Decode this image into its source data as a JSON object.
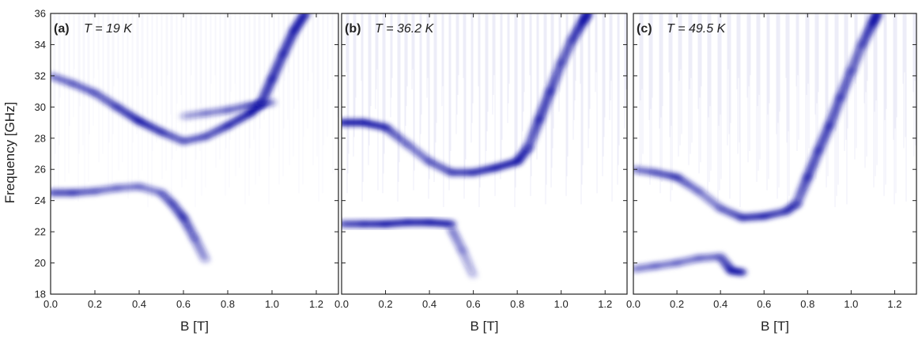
{
  "figure": {
    "ylabel": "Frequency [GHz]",
    "xlabel": "B [T]",
    "accent_color": "#1a1aa8"
  },
  "chart_data": [
    {
      "type": "heatmap",
      "panel_label": "(a)",
      "title": "T = 19 K",
      "xlabel": "B [T]",
      "ylabel": "Frequency [GHz]",
      "xlim": [
        0,
        1.3
      ],
      "ylim": [
        18,
        36
      ],
      "xticks": [
        0.0,
        0.2,
        0.4,
        0.6,
        0.8,
        1.0,
        1.2
      ],
      "xtick_labels": [
        "0.0",
        "0.2",
        "0.4",
        "0.6",
        "0.8",
        "1.0",
        "1.2"
      ],
      "yticks": [
        18,
        20,
        22,
        24,
        26,
        28,
        30,
        32,
        34,
        36
      ],
      "ytick_labels": [
        "18",
        "20",
        "22",
        "24",
        "26",
        "28",
        "30",
        "32",
        "34",
        "36"
      ],
      "series": [
        {
          "x": [
            0.0,
            0.1,
            0.2,
            0.3,
            0.4,
            0.5,
            0.6,
            0.7,
            0.8,
            0.9,
            0.95
          ],
          "y": [
            32.0,
            31.5,
            30.9,
            30.0,
            29.1,
            28.4,
            27.8,
            28.1,
            28.8,
            29.6,
            30.2
          ],
          "intensity": [
            0.35,
            0.4,
            0.45,
            0.6,
            0.9,
            0.6,
            0.4,
            0.45,
            0.7,
            0.9,
            0.9
          ]
        },
        {
          "x": [
            0.6,
            0.7,
            0.8,
            0.9,
            1.0
          ],
          "y": [
            29.4,
            29.6,
            29.8,
            30.1,
            30.3
          ],
          "intensity": [
            0.2,
            0.25,
            0.3,
            0.4,
            0.4
          ]
        },
        {
          "x": [
            0.95,
            1.0,
            1.05,
            1.1,
            1.15
          ],
          "y": [
            30.2,
            31.8,
            33.4,
            34.9,
            36.0
          ],
          "intensity": [
            0.8,
            0.85,
            0.8,
            0.9,
            1.0
          ]
        },
        {
          "x": [
            0.0,
            0.1,
            0.2,
            0.3,
            0.4,
            0.5,
            0.55,
            0.6,
            0.65,
            0.7
          ],
          "y": [
            24.5,
            24.5,
            24.6,
            24.8,
            24.9,
            24.5,
            23.8,
            22.9,
            21.6,
            20.2
          ],
          "intensity": [
            0.5,
            0.5,
            0.35,
            0.3,
            0.3,
            0.3,
            0.4,
            0.6,
            0.4,
            0.3
          ]
        }
      ]
    },
    {
      "type": "heatmap",
      "panel_label": "(b)",
      "title": "T = 36.2 K",
      "xlabel": "B [T]",
      "ylabel": "",
      "xlim": [
        0,
        1.3
      ],
      "ylim": [
        18,
        36
      ],
      "xticks": [
        0.0,
        0.2,
        0.4,
        0.6,
        0.8,
        1.0,
        1.2
      ],
      "xtick_labels": [
        "0.0",
        "0.2",
        "0.4",
        "0.6",
        "0.8",
        "1.0",
        "1.2"
      ],
      "yticks": [
        18,
        20,
        22,
        24,
        26,
        28,
        30,
        32,
        34,
        36
      ],
      "ytick_labels": [],
      "series": [
        {
          "x": [
            0.0,
            0.1,
            0.2,
            0.3,
            0.4,
            0.5,
            0.6,
            0.7,
            0.8,
            0.85
          ],
          "y": [
            29.0,
            29.0,
            28.7,
            27.6,
            26.5,
            25.8,
            25.8,
            26.1,
            26.5,
            27.4
          ],
          "intensity": [
            0.9,
            0.9,
            0.7,
            0.4,
            0.45,
            0.5,
            0.6,
            0.8,
            0.9,
            0.6
          ]
        },
        {
          "x": [
            0.85,
            0.9,
            0.95,
            1.0,
            1.05,
            1.1,
            1.12
          ],
          "y": [
            27.4,
            29.2,
            31.0,
            32.8,
            34.3,
            35.5,
            36.0
          ],
          "intensity": [
            0.6,
            0.85,
            0.8,
            0.6,
            0.6,
            0.9,
            1.0
          ]
        },
        {
          "x": [
            0.0,
            0.1,
            0.2,
            0.3,
            0.4,
            0.5
          ],
          "y": [
            22.5,
            22.5,
            22.5,
            22.6,
            22.6,
            22.5
          ],
          "intensity": [
            0.5,
            0.6,
            0.8,
            0.7,
            0.8,
            0.8
          ]
        },
        {
          "x": [
            0.5,
            0.55,
            0.6
          ],
          "y": [
            22.2,
            20.8,
            19.2
          ],
          "intensity": [
            0.4,
            0.3,
            0.2
          ]
        }
      ]
    },
    {
      "type": "heatmap",
      "panel_label": "(c)",
      "title": "T = 49.5 K",
      "xlabel": "B [T]",
      "ylabel": "",
      "xlim": [
        0,
        1.3
      ],
      "ylim": [
        18,
        36
      ],
      "xticks": [
        0.0,
        0.2,
        0.4,
        0.6,
        0.8,
        1.0,
        1.2
      ],
      "xtick_labels": [
        "0.0",
        "0.2",
        "0.4",
        "0.6",
        "0.8",
        "1.0",
        "1.2"
      ],
      "yticks": [
        18,
        20,
        22,
        24,
        26,
        28,
        30,
        32,
        34,
        36
      ],
      "ytick_labels": [],
      "series": [
        {
          "x": [
            0.0,
            0.1,
            0.2,
            0.3,
            0.4,
            0.5,
            0.6,
            0.7,
            0.75
          ],
          "y": [
            26.0,
            25.8,
            25.5,
            24.6,
            23.5,
            22.9,
            23.0,
            23.3,
            23.8
          ],
          "intensity": [
            0.3,
            0.4,
            0.6,
            0.35,
            0.4,
            0.6,
            0.7,
            0.5,
            0.5
          ]
        },
        {
          "x": [
            0.75,
            0.8,
            0.85,
            0.9,
            0.95,
            1.0,
            1.05,
            1.1,
            1.12
          ],
          "y": [
            23.8,
            25.5,
            27.2,
            28.8,
            30.6,
            32.3,
            34.0,
            35.4,
            36.0
          ],
          "intensity": [
            0.5,
            0.8,
            0.7,
            0.75,
            0.7,
            0.6,
            0.6,
            0.9,
            1.0
          ]
        },
        {
          "x": [
            0.0,
            0.1,
            0.2,
            0.3,
            0.4,
            0.45,
            0.5
          ],
          "y": [
            19.6,
            19.8,
            20.0,
            20.3,
            20.4,
            19.5,
            19.4
          ],
          "intensity": [
            0.3,
            0.3,
            0.3,
            0.3,
            0.35,
            0.7,
            0.6
          ]
        }
      ]
    }
  ]
}
